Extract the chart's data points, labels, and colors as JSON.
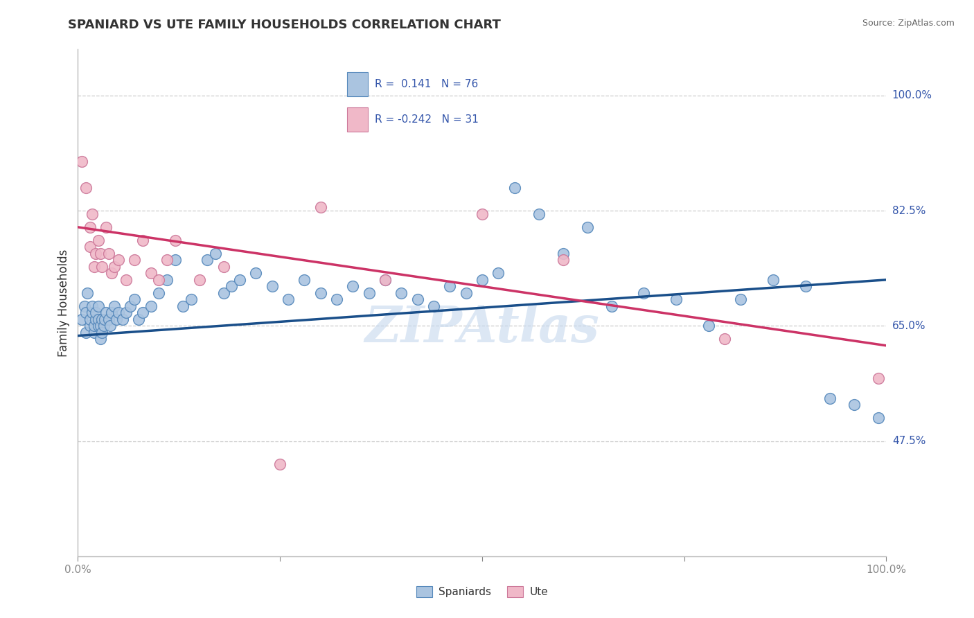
{
  "title": "SPANIARD VS UTE FAMILY HOUSEHOLDS CORRELATION CHART",
  "source": "Source: ZipAtlas.com",
  "ylabel": "Family Households",
  "legend_blue_r": "R =  0.141",
  "legend_blue_n": "N = 76",
  "legend_pink_r": "R = -0.242",
  "legend_pink_n": "N = 31",
  "ytick_labels": [
    "47.5%",
    "65.0%",
    "82.5%",
    "100.0%"
  ],
  "ytick_values": [
    0.475,
    0.65,
    0.825,
    1.0
  ],
  "xlim": [
    0.0,
    1.0
  ],
  "ylim": [
    0.3,
    1.07
  ],
  "blue_color": "#aac4e0",
  "pink_color": "#f0b8c8",
  "blue_edge_color": "#5588bb",
  "pink_edge_color": "#cc7799",
  "blue_line_color": "#1a4f8a",
  "pink_line_color": "#cc3366",
  "text_color": "#3355aa",
  "title_color": "#333333",
  "watermark": "ZIPAtlas",
  "blue_scatter_x": [
    0.005,
    0.008,
    0.01,
    0.01,
    0.012,
    0.015,
    0.015,
    0.018,
    0.018,
    0.02,
    0.02,
    0.022,
    0.022,
    0.025,
    0.025,
    0.025,
    0.028,
    0.028,
    0.03,
    0.03,
    0.032,
    0.033,
    0.035,
    0.038,
    0.04,
    0.042,
    0.045,
    0.048,
    0.05,
    0.055,
    0.06,
    0.065,
    0.07,
    0.075,
    0.08,
    0.09,
    0.1,
    0.11,
    0.12,
    0.13,
    0.14,
    0.16,
    0.17,
    0.18,
    0.19,
    0.2,
    0.22,
    0.24,
    0.26,
    0.28,
    0.3,
    0.32,
    0.34,
    0.36,
    0.38,
    0.4,
    0.42,
    0.44,
    0.46,
    0.48,
    0.5,
    0.52,
    0.54,
    0.57,
    0.6,
    0.63,
    0.66,
    0.7,
    0.74,
    0.78,
    0.82,
    0.86,
    0.9,
    0.93,
    0.96,
    0.99
  ],
  "blue_scatter_y": [
    0.66,
    0.68,
    0.64,
    0.67,
    0.7,
    0.65,
    0.66,
    0.67,
    0.68,
    0.64,
    0.65,
    0.66,
    0.67,
    0.65,
    0.66,
    0.68,
    0.63,
    0.65,
    0.64,
    0.66,
    0.65,
    0.66,
    0.67,
    0.66,
    0.65,
    0.67,
    0.68,
    0.66,
    0.67,
    0.66,
    0.67,
    0.68,
    0.69,
    0.66,
    0.67,
    0.68,
    0.7,
    0.72,
    0.75,
    0.68,
    0.69,
    0.75,
    0.76,
    0.7,
    0.71,
    0.72,
    0.73,
    0.71,
    0.69,
    0.72,
    0.7,
    0.69,
    0.71,
    0.7,
    0.72,
    0.7,
    0.69,
    0.68,
    0.71,
    0.7,
    0.72,
    0.73,
    0.86,
    0.82,
    0.76,
    0.8,
    0.68,
    0.7,
    0.69,
    0.65,
    0.69,
    0.72,
    0.71,
    0.54,
    0.53,
    0.51
  ],
  "pink_scatter_x": [
    0.005,
    0.01,
    0.015,
    0.015,
    0.018,
    0.02,
    0.022,
    0.025,
    0.028,
    0.03,
    0.035,
    0.038,
    0.042,
    0.045,
    0.05,
    0.06,
    0.07,
    0.08,
    0.09,
    0.1,
    0.11,
    0.12,
    0.15,
    0.18,
    0.25,
    0.3,
    0.38,
    0.5,
    0.6,
    0.8,
    0.99
  ],
  "pink_scatter_y": [
    0.9,
    0.86,
    0.8,
    0.77,
    0.82,
    0.74,
    0.76,
    0.78,
    0.76,
    0.74,
    0.8,
    0.76,
    0.73,
    0.74,
    0.75,
    0.72,
    0.75,
    0.78,
    0.73,
    0.72,
    0.75,
    0.78,
    0.72,
    0.74,
    0.44,
    0.83,
    0.72,
    0.82,
    0.75,
    0.63,
    0.57
  ],
  "blue_trend_x": [
    0.0,
    1.0
  ],
  "blue_trend_y": [
    0.635,
    0.72
  ],
  "pink_trend_x": [
    0.0,
    1.0
  ],
  "pink_trend_y": [
    0.8,
    0.62
  ]
}
